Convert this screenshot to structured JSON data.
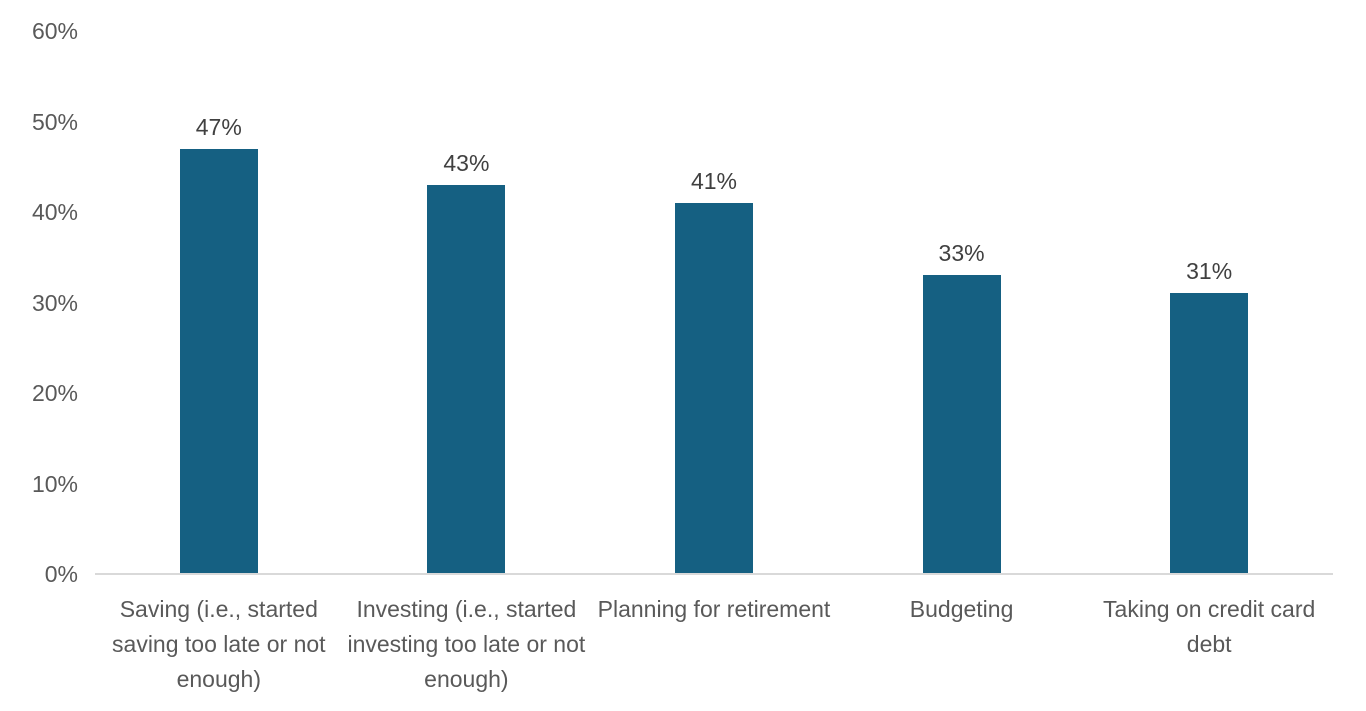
{
  "chart_data": {
    "type": "bar",
    "title": "",
    "xlabel": "",
    "ylabel": "",
    "categories": [
      "Saving (i.e., started saving too late or not enough)",
      "Investing (i.e., started investing too late or not enough)",
      "Planning for retirement",
      "Budgeting",
      "Taking on credit card debt"
    ],
    "values": [
      47,
      43,
      41,
      33,
      31
    ],
    "value_labels": [
      "47%",
      "43%",
      "41%",
      "33%",
      "31%"
    ],
    "ylim": [
      0,
      60
    ],
    "ytick_values": [
      0,
      10,
      20,
      30,
      40,
      50,
      60
    ],
    "yticks": [
      "0%",
      "10%",
      "20%",
      "30%",
      "40%",
      "50%",
      "60%"
    ],
    "grid": false,
    "legend": false,
    "colors": {
      "bar": "#156082",
      "axis_line": "#d9d9d9",
      "tick_label": "#595959",
      "data_label": "#404040",
      "background": "#ffffff"
    }
  }
}
